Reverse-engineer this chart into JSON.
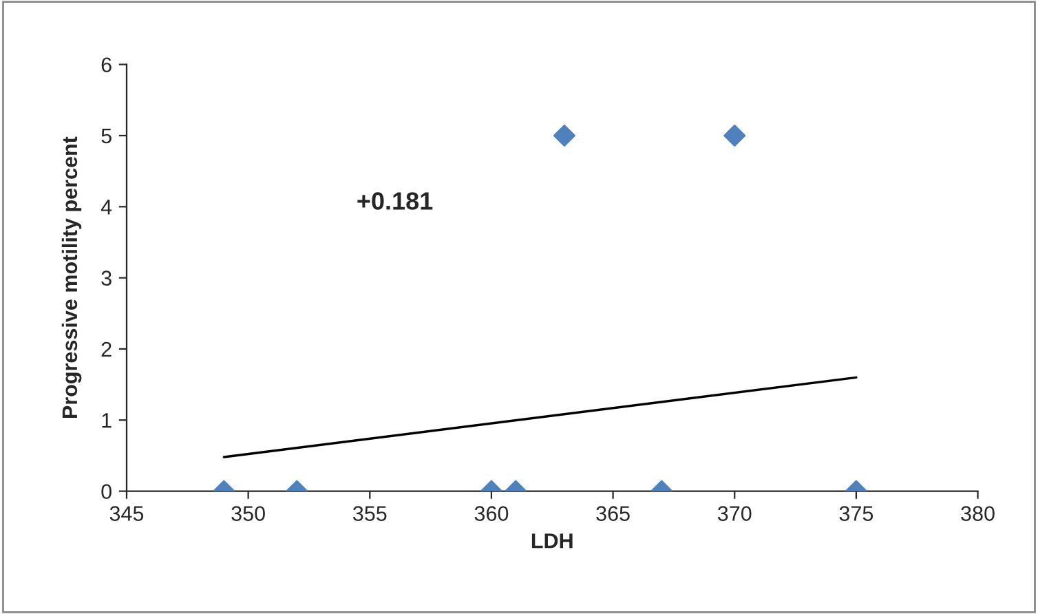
{
  "chart_data": {
    "type": "scatter",
    "xlabel": "LDH",
    "ylabel": "Progressive motility percent",
    "x": [
      349,
      352,
      360,
      361,
      363,
      367,
      370,
      375
    ],
    "series": [
      {
        "color": "#4f81bd",
        "marker": "diamond",
        "values": [
          0,
          0,
          0,
          0,
          5,
          0,
          5,
          0
        ]
      },
      {
        "type": "line",
        "color": "#000000",
        "x": [
          349,
          375
        ],
        "values": [
          0.48,
          1.6
        ]
      }
    ],
    "xlim": [
      345,
      380
    ],
    "xticks": [
      345,
      350,
      355,
      360,
      365,
      370,
      375,
      380
    ],
    "ylim": [
      0,
      6
    ],
    "yticks": [
      0,
      1,
      2,
      3,
      4,
      5,
      6
    ],
    "grid": false,
    "legend": false,
    "annotations": [
      "+0.181"
    ]
  }
}
